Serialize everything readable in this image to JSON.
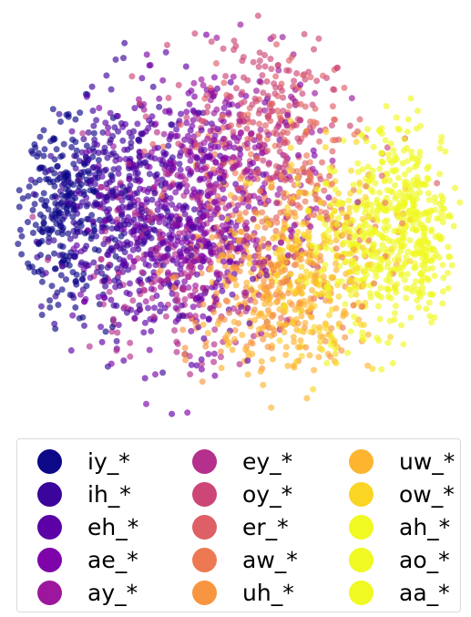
{
  "chart_data": {
    "type": "scatter",
    "title": "",
    "xlabel": "",
    "ylabel": "",
    "axes_visible": false,
    "grid": false,
    "legend_placement": "bottom",
    "legend_columns": 3,
    "marker_alpha": 0.65,
    "xlim": [
      -1,
      1
    ],
    "ylim": [
      -1,
      1
    ],
    "series": [
      {
        "name": "iy_*",
        "color": "#0d0887",
        "center": [
          -0.78,
          0.05
        ],
        "spread": [
          0.2,
          0.45
        ],
        "count": 260
      },
      {
        "name": "ih_*",
        "color": "#3b049a",
        "center": [
          -0.55,
          0.1
        ],
        "spread": [
          0.28,
          0.5
        ],
        "count": 300
      },
      {
        "name": "eh_*",
        "color": "#5c01a6",
        "center": [
          -0.35,
          0.0
        ],
        "spread": [
          0.35,
          0.55
        ],
        "count": 320
      },
      {
        "name": "ae_*",
        "color": "#7e03a8",
        "center": [
          -0.15,
          0.05
        ],
        "spread": [
          0.4,
          0.55
        ],
        "count": 300
      },
      {
        "name": "ay_*",
        "color": "#9c179e",
        "center": [
          -0.05,
          0.2
        ],
        "spread": [
          0.4,
          0.5
        ],
        "count": 220
      },
      {
        "name": "ey_*",
        "color": "#b52f8c",
        "center": [
          -0.25,
          -0.2
        ],
        "spread": [
          0.4,
          0.45
        ],
        "count": 200
      },
      {
        "name": "oy_*",
        "color": "#cc4778",
        "center": [
          0.1,
          0.55
        ],
        "spread": [
          0.35,
          0.3
        ],
        "count": 140
      },
      {
        "name": "er_*",
        "color": "#de5f65",
        "center": [
          0.15,
          0.3
        ],
        "spread": [
          0.4,
          0.4
        ],
        "count": 150
      },
      {
        "name": "aw_*",
        "color": "#ed7953",
        "center": [
          0.25,
          0.05
        ],
        "spread": [
          0.35,
          0.45
        ],
        "count": 150
      },
      {
        "name": "uh_*",
        "color": "#f89540",
        "center": [
          0.1,
          -0.3
        ],
        "spread": [
          0.35,
          0.35
        ],
        "count": 180
      },
      {
        "name": "uw_*",
        "color": "#fdb42f",
        "center": [
          0.2,
          -0.35
        ],
        "spread": [
          0.3,
          0.35
        ],
        "count": 220
      },
      {
        "name": "ow_*",
        "color": "#fbd524",
        "center": [
          0.35,
          -0.15
        ],
        "spread": [
          0.3,
          0.4
        ],
        "count": 200
      },
      {
        "name": "ah_*",
        "color": "#f0f921",
        "center": [
          0.55,
          -0.2
        ],
        "spread": [
          0.25,
          0.4
        ],
        "count": 200
      },
      {
        "name": "ao_*",
        "color": "#f0f921",
        "center": [
          0.7,
          0.1
        ],
        "spread": [
          0.2,
          0.35
        ],
        "count": 180
      },
      {
        "name": "aa_*",
        "color": "#f0f921",
        "center": [
          0.8,
          -0.1
        ],
        "spread": [
          0.15,
          0.35
        ],
        "count": 180
      }
    ]
  },
  "legend": {
    "items": [
      {
        "label": "iy_*",
        "color": "#0d0887"
      },
      {
        "label": "ih_*",
        "color": "#3b049a"
      },
      {
        "label": "eh_*",
        "color": "#5c01a6"
      },
      {
        "label": "ae_*",
        "color": "#7e03a8"
      },
      {
        "label": "ay_*",
        "color": "#9c179e"
      },
      {
        "label": "ey_*",
        "color": "#b52f8c"
      },
      {
        "label": "oy_*",
        "color": "#cc4778"
      },
      {
        "label": "er_*",
        "color": "#de5f65"
      },
      {
        "label": "aw_*",
        "color": "#ed7953"
      },
      {
        "label": "uh_*",
        "color": "#f89540"
      },
      {
        "label": "uw_*",
        "color": "#fdb42f"
      },
      {
        "label": "ow_*",
        "color": "#fbd524"
      },
      {
        "label": "ah_*",
        "color": "#f0f921"
      },
      {
        "label": "ao_*",
        "color": "#f0f921"
      },
      {
        "label": "aa_*",
        "color": "#f0f921"
      }
    ]
  }
}
